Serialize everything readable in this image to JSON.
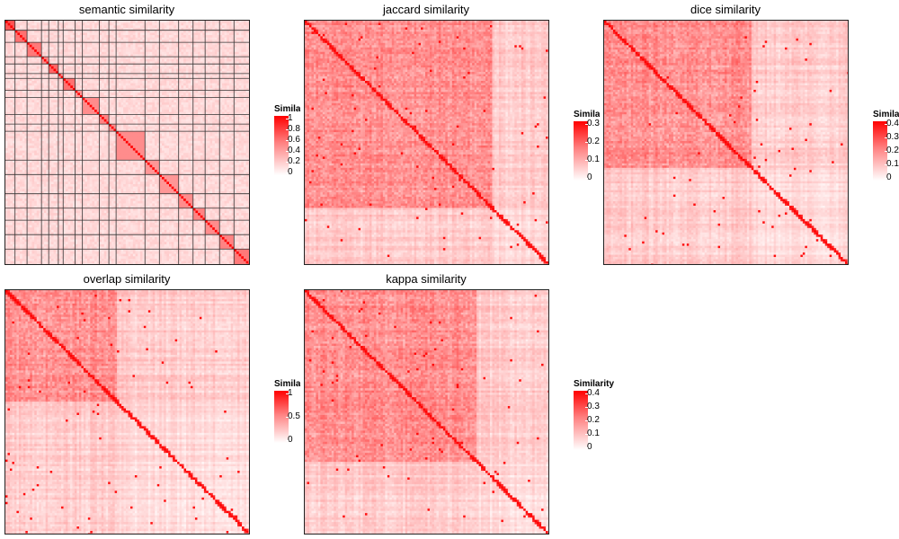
{
  "colors": {
    "low": "#ffffff",
    "high": "#ff0000",
    "frame": "#222222",
    "grid": "#333333"
  },
  "chart_data": [
    {
      "type": "heatmap",
      "title": "semantic similarity",
      "legend_title": "Similarity",
      "legend_visible_title": "Simila",
      "legend_ticks": [
        "1",
        "0.8",
        "0.6",
        "0.4",
        "0.2",
        "0"
      ],
      "value_range": [
        0,
        1
      ],
      "clusters": [
        {
          "size": 4,
          "within": 0.9
        },
        {
          "size": 5,
          "within": 0.75
        },
        {
          "size": 6,
          "within": 0.7
        },
        {
          "size": 3,
          "within": 0.6
        },
        {
          "size": 4,
          "within": 0.8
        },
        {
          "size": 2,
          "within": 0.5
        },
        {
          "size": 5,
          "within": 0.75
        },
        {
          "size": 3,
          "within": 0.55
        },
        {
          "size": 7,
          "within": 0.6
        },
        {
          "size": 4,
          "within": 0.65
        },
        {
          "size": 3,
          "within": 0.6
        },
        {
          "size": 12,
          "within": 0.6
        },
        {
          "size": 6,
          "within": 0.55
        },
        {
          "size": 8,
          "within": 0.55
        },
        {
          "size": 6,
          "within": 0.6
        },
        {
          "size": 5,
          "within": 0.65
        },
        {
          "size": 6,
          "within": 0.6
        },
        {
          "size": 6,
          "within": 0.65
        },
        {
          "size": 7,
          "within": 0.7
        }
      ],
      "background_level": 0.2,
      "blank_rows": [
        7,
        11,
        13,
        14,
        15,
        16,
        21,
        25,
        26,
        28,
        30
      ]
    },
    {
      "type": "heatmap",
      "title": "jaccard similarity",
      "legend_title": "Similarity",
      "legend_visible_title": "Simila",
      "legend_ticks": [
        "0.3",
        "0.2",
        "0.1",
        "0"
      ],
      "value_range": [
        0,
        0.3
      ],
      "block_structure": "large block top-left (~75% of rows), weak lower-right region",
      "main_block_fraction": 0.76
    },
    {
      "type": "heatmap",
      "title": "dice similarity",
      "legend_title": "Similarity",
      "legend_visible_title": "Simila",
      "legend_ticks": [
        "0.4",
        "0.3",
        "0.2",
        "0.1",
        "0"
      ],
      "value_range": [
        0,
        0.4
      ],
      "block_structure": "strong block top-left (~60% of rows), lighter lower-right",
      "main_block_fraction": 0.6
    },
    {
      "type": "heatmap",
      "title": "overlap similarity",
      "legend_title": "Similarity",
      "legend_visible_title": "Simila",
      "legend_ticks": [
        "1",
        "0.5",
        "0"
      ],
      "value_range": [
        0,
        1
      ],
      "block_structure": "diffuse with moderate block upper-left",
      "main_block_fraction": 0.45
    },
    {
      "type": "heatmap",
      "title": "kappa similarity",
      "legend_title": "Similarity",
      "legend_visible_title": "Similarity",
      "legend_ticks": [
        "0.4",
        "0.3",
        "0.2",
        "0.1",
        "0"
      ],
      "value_range": [
        0,
        0.4
      ],
      "block_structure": "large block top-left (~70% of rows), weak lower-right",
      "main_block_fraction": 0.7
    }
  ]
}
